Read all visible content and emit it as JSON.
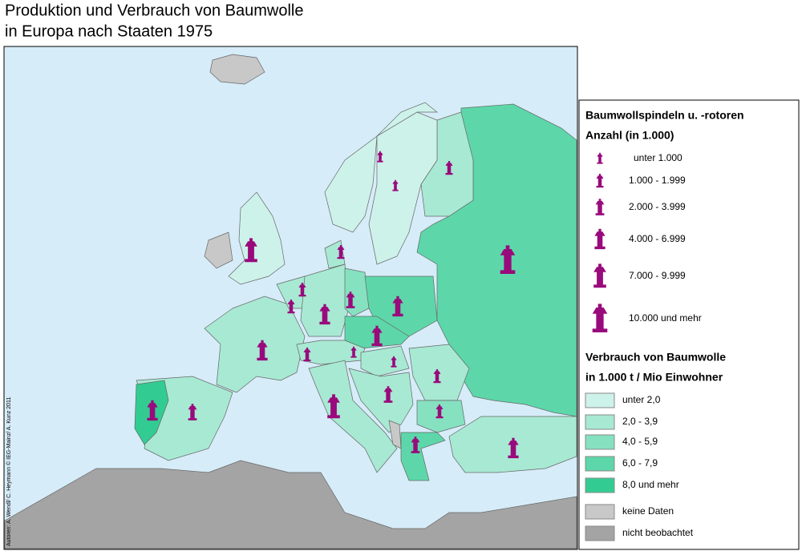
{
  "title": [
    "Produktion und Verbrauch von Baumwolle",
    "in Europa nach Staaten 1975"
  ],
  "credit": "Autoren: A. Wendl/ C. Heymann © IEG-Mainz/ A. Kunz 2011",
  "legend": {
    "spindles": {
      "title": "Baumwollspindeln u. -rotoren",
      "subtitle": "Anzahl (in 1.000)",
      "color": "#990a7c",
      "classes": [
        "unter  1.000",
        "1.000 - 1.999",
        "2.000 - 3.999",
        "4.000 - 6.999",
        "7.000 - 9.999",
        "10.000 und mehr"
      ]
    },
    "consumption": {
      "title": "Verbrauch von Baumwolle",
      "subtitle": "in 1.000 t / Mio Einwohner",
      "classes": [
        {
          "label": "unter 2,0",
          "color": "#cdf2ea"
        },
        {
          "label": "2,0 - 3,9",
          "color": "#a8e9d3"
        },
        {
          "label": "4,0 - 5,9",
          "color": "#86e1c0"
        },
        {
          "label": "6,0 - 7,9",
          "color": "#5dd7a9"
        },
        {
          "label": "8,0 und mehr",
          "color": "#32cc93"
        }
      ]
    },
    "other": [
      {
        "label": "keine Daten",
        "color": "#c8c8c8"
      },
      {
        "label": "nicht beobachtet",
        "color": "#a4a4a4"
      }
    ]
  }
}
